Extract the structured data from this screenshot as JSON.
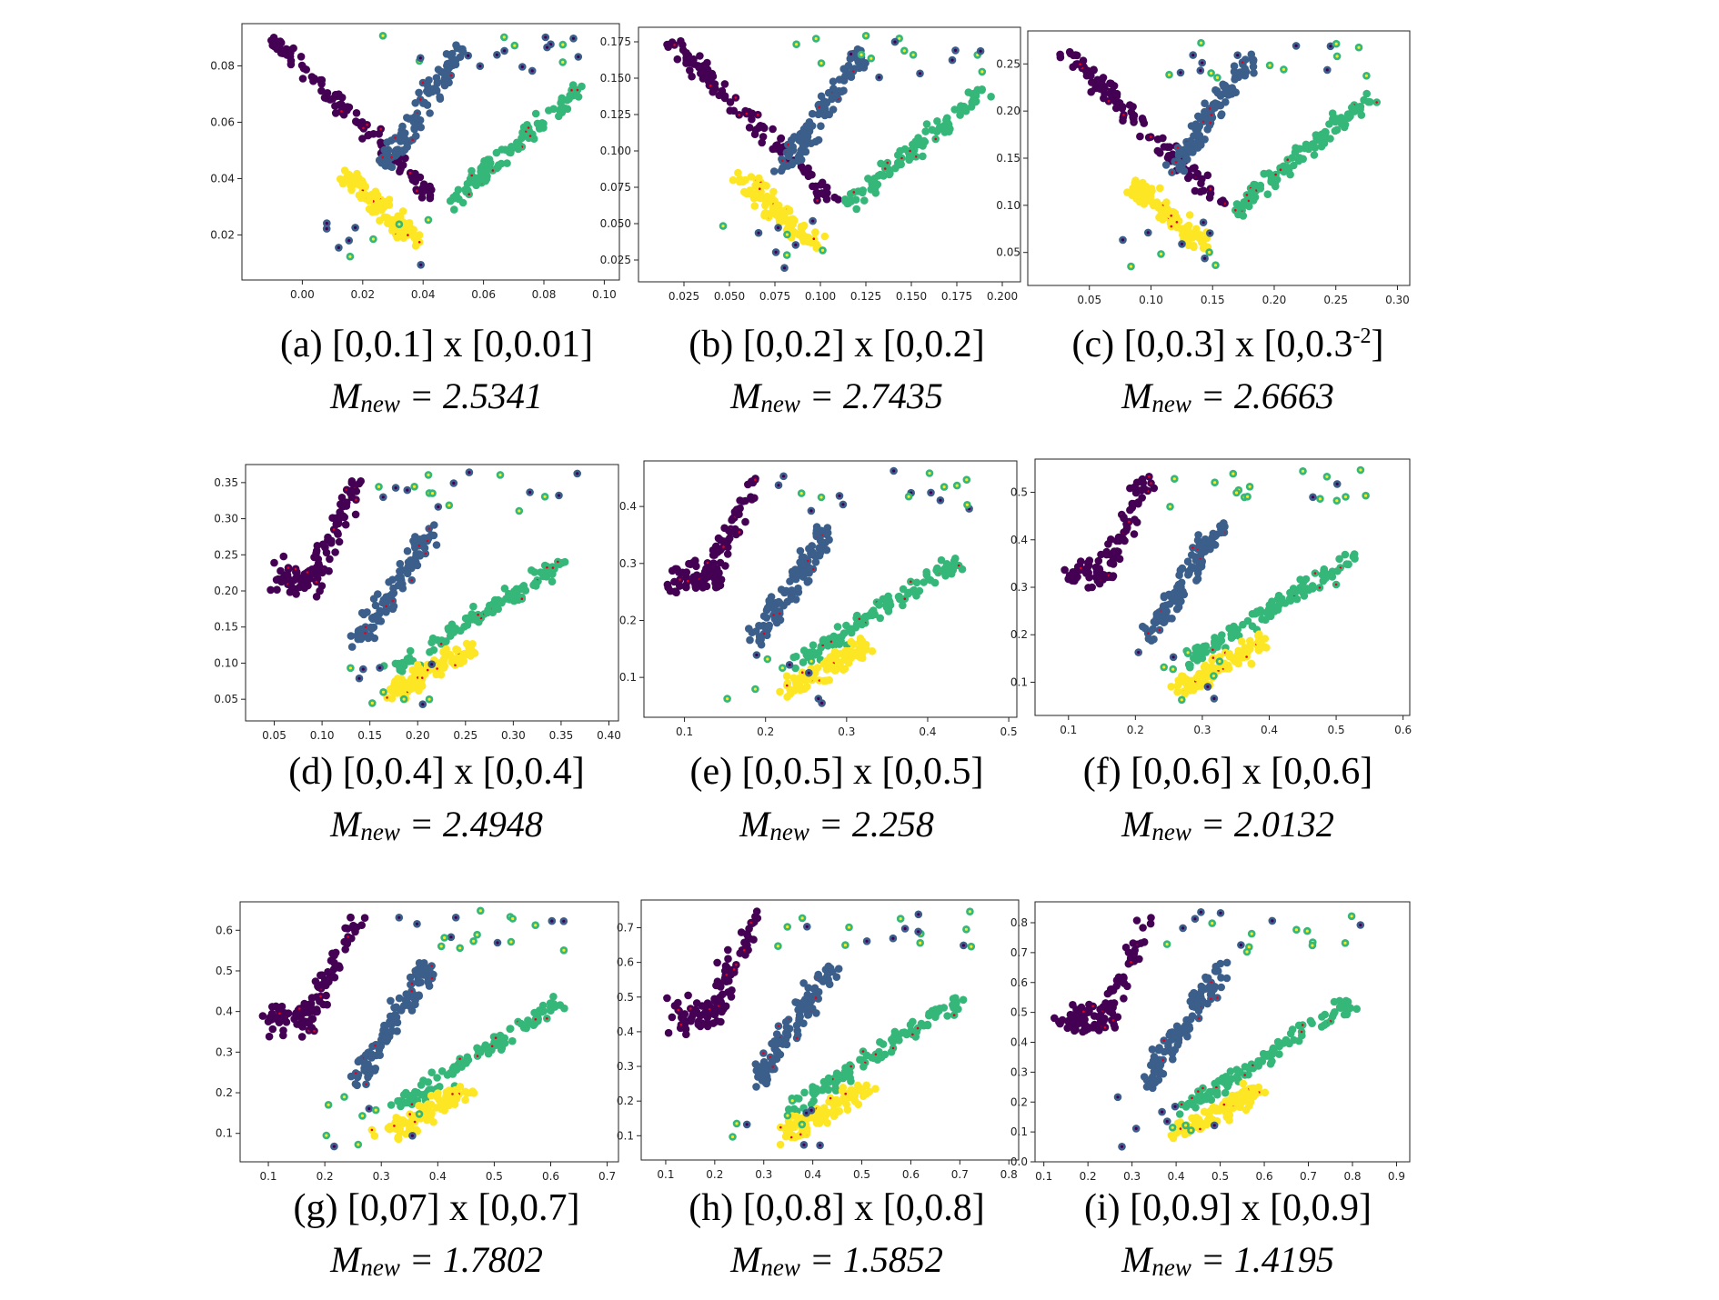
{
  "colors": {
    "purple": "#440154",
    "blue": "#3b5f8a",
    "green": "#35b779",
    "yellow": "#fde725",
    "center": "#e8001a"
  },
  "chart_data": [
    {
      "id": "a",
      "type": "scatter",
      "label": "(a)",
      "caption": "[0,0.1] x [0,0.01]",
      "caption_sup": "",
      "m_prefix": "M",
      "m_sub": "new",
      "m_value": "= 2.5341",
      "xlim": [
        -0.02,
        0.105
      ],
      "ylim": [
        0.004,
        0.095
      ],
      "xticks": [
        0.0,
        0.02,
        0.04,
        0.06,
        0.08,
        0.1
      ],
      "xtick_labels": [
        "0.00",
        "0.02",
        "0.04",
        "0.06",
        "0.08",
        "0.10"
      ],
      "yticks": [
        0.02,
        0.04,
        0.06,
        0.08
      ],
      "ytick_labels": [
        "0.02",
        "0.04",
        "0.06",
        "0.08"
      ]
    },
    {
      "id": "b",
      "type": "scatter",
      "label": "(b)",
      "caption": "[0,0.2] x [0,0.2]",
      "caption_sup": "",
      "m_prefix": "M",
      "m_sub": "new",
      "m_value": "= 2.7435",
      "xlim": [
        0.0,
        0.21
      ],
      "ylim": [
        0.01,
        0.185
      ],
      "xticks": [
        0.025,
        0.05,
        0.075,
        0.1,
        0.125,
        0.15,
        0.175,
        0.2
      ],
      "xtick_labels": [
        "0.025",
        "0.050",
        "0.075",
        "0.100",
        "0.125",
        "0.150",
        "0.175",
        "0.200"
      ],
      "yticks": [
        0.025,
        0.05,
        0.075,
        0.1,
        0.125,
        0.15,
        0.175
      ],
      "ytick_labels": [
        "0.025",
        "0.050",
        "0.075",
        "0.100",
        "0.125",
        "0.150",
        "0.175"
      ]
    },
    {
      "id": "c",
      "type": "scatter",
      "label": "(c)",
      "caption": "[0,0.3] x [0,0.3",
      "caption_sup": "-2",
      "caption_end": "]",
      "m_prefix": "M",
      "m_sub": "new",
      "m_value": "= 2.6663",
      "xlim": [
        0.0,
        0.31
      ],
      "ylim": [
        0.015,
        0.285
      ],
      "xticks": [
        0.05,
        0.1,
        0.15,
        0.2,
        0.25,
        0.3
      ],
      "xtick_labels": [
        "0.05",
        "0.10",
        "0.15",
        "0.20",
        "0.25",
        "0.30"
      ],
      "yticks": [
        0.05,
        0.1,
        0.15,
        0.2,
        0.25
      ],
      "ytick_labels": [
        "0.05",
        "0.10",
        "0.15",
        "0.20",
        "0.25"
      ]
    },
    {
      "id": "d",
      "type": "scatter",
      "label": "(d)",
      "caption": "[0,0.4] x [0,0.4]",
      "caption_sup": "",
      "m_prefix": "M",
      "m_sub": "new",
      "m_value": "= 2.4948",
      "xlim": [
        0.02,
        0.41
      ],
      "ylim": [
        0.02,
        0.375
      ],
      "xticks": [
        0.05,
        0.1,
        0.15,
        0.2,
        0.25,
        0.3,
        0.35,
        0.4
      ],
      "xtick_labels": [
        "0.05",
        "0.10",
        "0.15",
        "0.20",
        "0.25",
        "0.30",
        "0.35",
        "0.40"
      ],
      "yticks": [
        0.05,
        0.1,
        0.15,
        0.2,
        0.25,
        0.3,
        0.35
      ],
      "ytick_labels": [
        "0.05",
        "0.10",
        "0.15",
        "0.20",
        "0.25",
        "0.30",
        "0.35"
      ]
    },
    {
      "id": "e",
      "type": "scatter",
      "label": "(e)",
      "caption": "[0,0.5] x [0,0.5]",
      "caption_sup": "",
      "m_prefix": "M",
      "m_sub": "new",
      "m_value": "= 2.258",
      "xlim": [
        0.05,
        0.51
      ],
      "ylim": [
        0.03,
        0.48
      ],
      "xticks": [
        0.1,
        0.2,
        0.3,
        0.4,
        0.5
      ],
      "xtick_labels": [
        "0.1",
        "0.2",
        "0.3",
        "0.4",
        "0.5"
      ],
      "yticks": [
        0.1,
        0.2,
        0.3,
        0.4
      ],
      "ytick_labels": [
        "0.1",
        "0.2",
        "0.3",
        "0.4"
      ]
    },
    {
      "id": "f",
      "type": "scatter",
      "label": "(f)",
      "caption": "[0,0.6] x [0,0.6]",
      "caption_sup": "",
      "m_prefix": "M",
      "m_sub": "new",
      "m_value": "= 2.0132",
      "xlim": [
        0.05,
        0.61
      ],
      "ylim": [
        0.03,
        0.57
      ],
      "xticks": [
        0.1,
        0.2,
        0.3,
        0.4,
        0.5,
        0.6
      ],
      "xtick_labels": [
        "0.1",
        "0.2",
        "0.3",
        "0.4",
        "0.5",
        "0.6"
      ],
      "yticks": [
        0.1,
        0.2,
        0.3,
        0.4,
        0.5
      ],
      "ytick_labels": [
        "0.1",
        "0.2",
        "0.3",
        "0.4",
        "0.5"
      ]
    },
    {
      "id": "g",
      "type": "scatter",
      "label": "(g)",
      "caption": "[0,07] x [0,0.7]",
      "caption_sup": "",
      "m_prefix": "M",
      "m_sub": "new",
      "m_value": "= 1.7802",
      "xlim": [
        0.05,
        0.72
      ],
      "ylim": [
        0.03,
        0.67
      ],
      "xticks": [
        0.1,
        0.2,
        0.3,
        0.4,
        0.5,
        0.6,
        0.7
      ],
      "xtick_labels": [
        "0.1",
        "0.2",
        "0.3",
        "0.4",
        "0.5",
        "0.6",
        "0.7"
      ],
      "yticks": [
        0.1,
        0.2,
        0.3,
        0.4,
        0.5,
        0.6
      ],
      "ytick_labels": [
        "0.1",
        "0.2",
        "0.3",
        "0.4",
        "0.5",
        "0.6"
      ]
    },
    {
      "id": "h",
      "type": "scatter",
      "label": "(h)",
      "caption": "[0,0.8] x [0,0.8]",
      "caption_sup": "",
      "m_prefix": "M",
      "m_sub": "new",
      "m_value": "= 1.5852",
      "xlim": [
        0.05,
        0.82
      ],
      "ylim": [
        0.03,
        0.78
      ],
      "xticks": [
        0.1,
        0.2,
        0.3,
        0.4,
        0.5,
        0.6,
        0.7,
        0.8
      ],
      "xtick_labels": [
        "0.1",
        "0.2",
        "0.3",
        "0.4",
        "0.5",
        "0.6",
        "0.7",
        "0.8"
      ],
      "yticks": [
        0.1,
        0.2,
        0.3,
        0.4,
        0.5,
        0.6,
        0.7
      ],
      "ytick_labels": [
        "0.1",
        "0.2",
        "0.3",
        "0.4",
        "0.5",
        "0.6",
        "0.7"
      ]
    },
    {
      "id": "i",
      "type": "scatter",
      "label": "(i)",
      "caption": "[0,0.9] x [0,0.9]",
      "caption_sup": "",
      "m_prefix": "M",
      "m_sub": "new",
      "m_value": "= 1.4195",
      "xlim": [
        0.08,
        0.93
      ],
      "ylim": [
        0.0,
        0.87
      ],
      "xticks": [
        0.1,
        0.2,
        0.3,
        0.4,
        0.5,
        0.6,
        0.7,
        0.8,
        0.9
      ],
      "xtick_labels": [
        "0.1",
        "0.2",
        "0.3",
        "0.4",
        "0.5",
        "0.6",
        "0.7",
        "0.8",
        "0.9"
      ],
      "yticks": [
        0.0,
        0.1,
        0.2,
        0.3,
        0.4,
        0.5,
        0.6,
        0.7,
        0.8
      ],
      "ytick_labels": [
        "0.0",
        "0.1",
        "0.2",
        "0.3",
        "0.4",
        "0.5",
        "0.6",
        "0.7",
        "0.8"
      ]
    }
  ]
}
